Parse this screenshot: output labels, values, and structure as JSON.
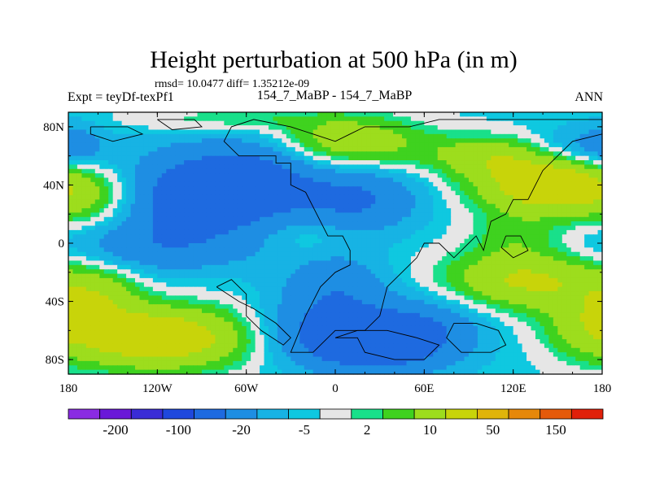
{
  "chart_data": {
    "type": "heatmap",
    "title": "Height perturbation at 500 hPa (in m)",
    "stats_line": "rmsd= 10.0477 diff= 1.35212e-09",
    "subtitle_left": "Expt = teyDf-texPf1",
    "subtitle_center": "154_7_MaBP - 154_7_MaBP",
    "subtitle_right": "ANN",
    "xlabel": "",
    "ylabel": "",
    "x_range": [
      -180,
      180
    ],
    "y_range": [
      -90,
      90
    ],
    "x_ticks": [
      {
        "value": -180,
        "label": "180"
      },
      {
        "value": -120,
        "label": "120W"
      },
      {
        "value": -60,
        "label": "60W"
      },
      {
        "value": 0,
        "label": "0"
      },
      {
        "value": 60,
        "label": "60E"
      },
      {
        "value": 120,
        "label": "120E"
      },
      {
        "value": 180,
        "label": "180"
      }
    ],
    "y_ticks": [
      {
        "value": 80,
        "label": "80N"
      },
      {
        "value": 40,
        "label": "40N"
      },
      {
        "value": 0,
        "label": "0"
      },
      {
        "value": -40,
        "label": "40S"
      },
      {
        "value": -80,
        "label": "80S"
      }
    ],
    "colorbar": {
      "colors": [
        "#8a2be2",
        "#6a18d8",
        "#3a2cd6",
        "#1f48dd",
        "#1e6ae0",
        "#1e8ee3",
        "#17b3e4",
        "#0fc8e0",
        "#e6e6e6",
        "#19e08a",
        "#3fd21f",
        "#9ddd1d",
        "#c8d40a",
        "#e0b40a",
        "#e6880a",
        "#e55a0a",
        "#e0200a"
      ],
      "tick_labels": [
        "-200",
        "-100",
        "-20",
        "-5",
        "2",
        "10",
        "50",
        "150"
      ]
    },
    "features": [
      {
        "lon": -100,
        "lat": 30,
        "amp": -25,
        "sx": 45,
        "sy": 22
      },
      {
        "lon": -55,
        "lat": 45,
        "amp": -18,
        "sx": 30,
        "sy": 18
      },
      {
        "lon": 15,
        "lat": 30,
        "amp": -18,
        "sx": 30,
        "sy": 15
      },
      {
        "lon": 0,
        "lat": -35,
        "amp": -15,
        "sx": 25,
        "sy": 20
      },
      {
        "lon": 25,
        "lat": -70,
        "amp": -28,
        "sx": 35,
        "sy": 14
      },
      {
        "lon": 60,
        "lat": -55,
        "amp": -12,
        "sx": 30,
        "sy": 15
      },
      {
        "lon": -175,
        "lat": 65,
        "amp": -12,
        "sx": 15,
        "sy": 12
      },
      {
        "lon": 155,
        "lat": 65,
        "amp": -10,
        "sx": 20,
        "sy": 10
      },
      {
        "lon": -130,
        "lat": -5,
        "amp": -10,
        "sx": 50,
        "sy": 12
      },
      {
        "lon": -30,
        "lat": -60,
        "amp": -8,
        "sx": 25,
        "sy": 15
      },
      {
        "lon": 10,
        "lat": 70,
        "amp": 20,
        "sx": 35,
        "sy": 12
      },
      {
        "lon": 145,
        "lat": 40,
        "amp": 35,
        "sx": 35,
        "sy": 15
      },
      {
        "lon": 100,
        "lat": 60,
        "amp": 15,
        "sx": 30,
        "sy": 10
      },
      {
        "lon": 130,
        "lat": -25,
        "amp": 25,
        "sx": 40,
        "sy": 15
      },
      {
        "lon": -120,
        "lat": -65,
        "amp": 35,
        "sx": 45,
        "sy": 15
      },
      {
        "lon": -160,
        "lat": 30,
        "amp": 15,
        "sx": 25,
        "sy": 15
      },
      {
        "lon": -160,
        "lat": -35,
        "amp": 15,
        "sx": 20,
        "sy": 15
      },
      {
        "lon": 170,
        "lat": -55,
        "amp": 12,
        "sx": 20,
        "sy": 15
      },
      {
        "lon": 120,
        "lat": 5,
        "amp": 8,
        "sx": 20,
        "sy": 10
      },
      {
        "lon": -20,
        "lat": 5,
        "amp": 6,
        "sx": 20,
        "sy": 10
      },
      {
        "lon": -70,
        "lat": 85,
        "amp": 8,
        "sx": 50,
        "sy": 6
      }
    ],
    "base_value": -3
  }
}
